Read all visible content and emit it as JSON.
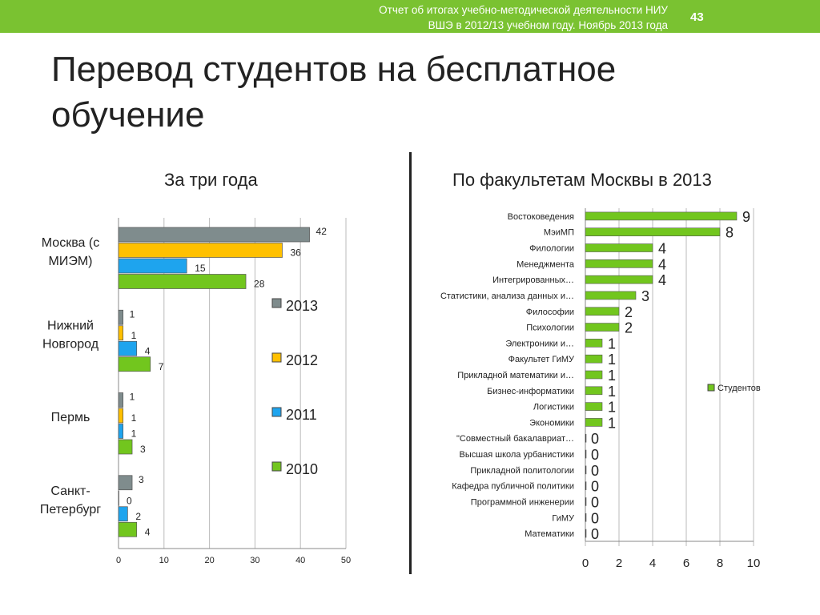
{
  "header": {
    "line1": "Отчет об итогах учебно-методической деятельности НИУ",
    "line2": "ВШЭ в 2012/13 учебном году. Ноябрь 2013 года",
    "page": "43"
  },
  "title": "Перевод студентов на бесплатное обучение",
  "colors": {
    "accent": "#7ac231"
  },
  "chart_data": [
    {
      "type": "bar",
      "orientation": "horizontal",
      "title": "За три года",
      "categories": [
        "Москва (с МИЭМ)",
        "Нижний Новгород",
        "Пермь",
        "Санкт-Петербург"
      ],
      "series": [
        {
          "name": "2013",
          "color": "#7f8c8d",
          "values": [
            42,
            1,
            1,
            3
          ]
        },
        {
          "name": "2012",
          "color": "#ffc000",
          "values": [
            36,
            1,
            1,
            0
          ]
        },
        {
          "name": "2011",
          "color": "#1ea4ee",
          "values": [
            15,
            4,
            1,
            2
          ]
        },
        {
          "name": "2010",
          "color": "#72c61e",
          "values": [
            28,
            7,
            3,
            4
          ]
        }
      ],
      "xlim": [
        0,
        50
      ],
      "xticks": [
        0,
        10,
        20,
        30,
        40,
        50
      ],
      "legend": "right",
      "grid": true
    },
    {
      "type": "bar",
      "orientation": "horizontal",
      "title": "По факультетам Москвы в 2013",
      "categories": [
        "Востоковедения",
        "МэиМП",
        "Филологии",
        "Менеджмента",
        "Интегрированных…",
        "Статистики, анализа данных и…",
        "Философии",
        "Психологии",
        "Электроники и…",
        "Факультет ГиМУ",
        "Прикладной математики и…",
        "Бизнес-информатики",
        "Логистики",
        "Экономики",
        "\"Совместный бакалавриат…",
        "Высшая школа урбанистики",
        "Прикладной политологии",
        "Кафедра публичной политики",
        "Программной инженерии",
        "ГиМУ",
        "Математики"
      ],
      "series": [
        {
          "name": "Студентов",
          "color": "#72c61e",
          "values": [
            9,
            8,
            4,
            4,
            4,
            3,
            2,
            2,
            1,
            1,
            1,
            1,
            1,
            1,
            0,
            0,
            0,
            0,
            0,
            0,
            0
          ]
        }
      ],
      "xlim": [
        0,
        10
      ],
      "xticks": [
        0,
        2,
        4,
        6,
        8,
        10
      ],
      "legend": "right",
      "grid": true
    }
  ]
}
